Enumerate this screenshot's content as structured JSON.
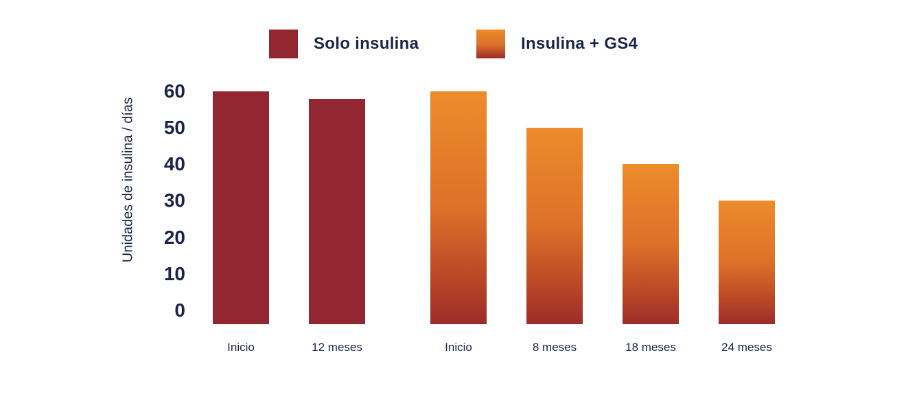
{
  "colors": {
    "text_navy": "#1b2348",
    "bar_red": "#932731",
    "bar_orange_top": "#ec8c2b",
    "bar_orange_mid": "#dd7129",
    "bar_orange_low": "#bc4a27",
    "bar_orange_bottom": "#9c2d28"
  },
  "legend": {
    "items": [
      {
        "label": "Solo insulina",
        "swatch": "red-solid"
      },
      {
        "label": "Insulina + GS4",
        "swatch": "orange-gradient"
      }
    ]
  },
  "chart_data": {
    "type": "bar",
    "title": "",
    "ylabel": "Unidades de insulina / días",
    "xlabel": "",
    "ylim": [
      0,
      60
    ],
    "y_ticks": [
      60,
      50,
      40,
      30,
      20,
      10,
      0
    ],
    "grid": false,
    "legend_position": "top",
    "groups": [
      {
        "name": "Solo insulina",
        "style": "solid-red",
        "categories": [
          "Inicio",
          "12 meses"
        ],
        "values": [
          60,
          58
        ]
      },
      {
        "name": "Insulina + GS4",
        "style": "orange-gradient",
        "categories": [
          "Inicio",
          "8 meses",
          "18 meses",
          "24 meses"
        ],
        "values": [
          60,
          50,
          40,
          30
        ]
      }
    ]
  }
}
